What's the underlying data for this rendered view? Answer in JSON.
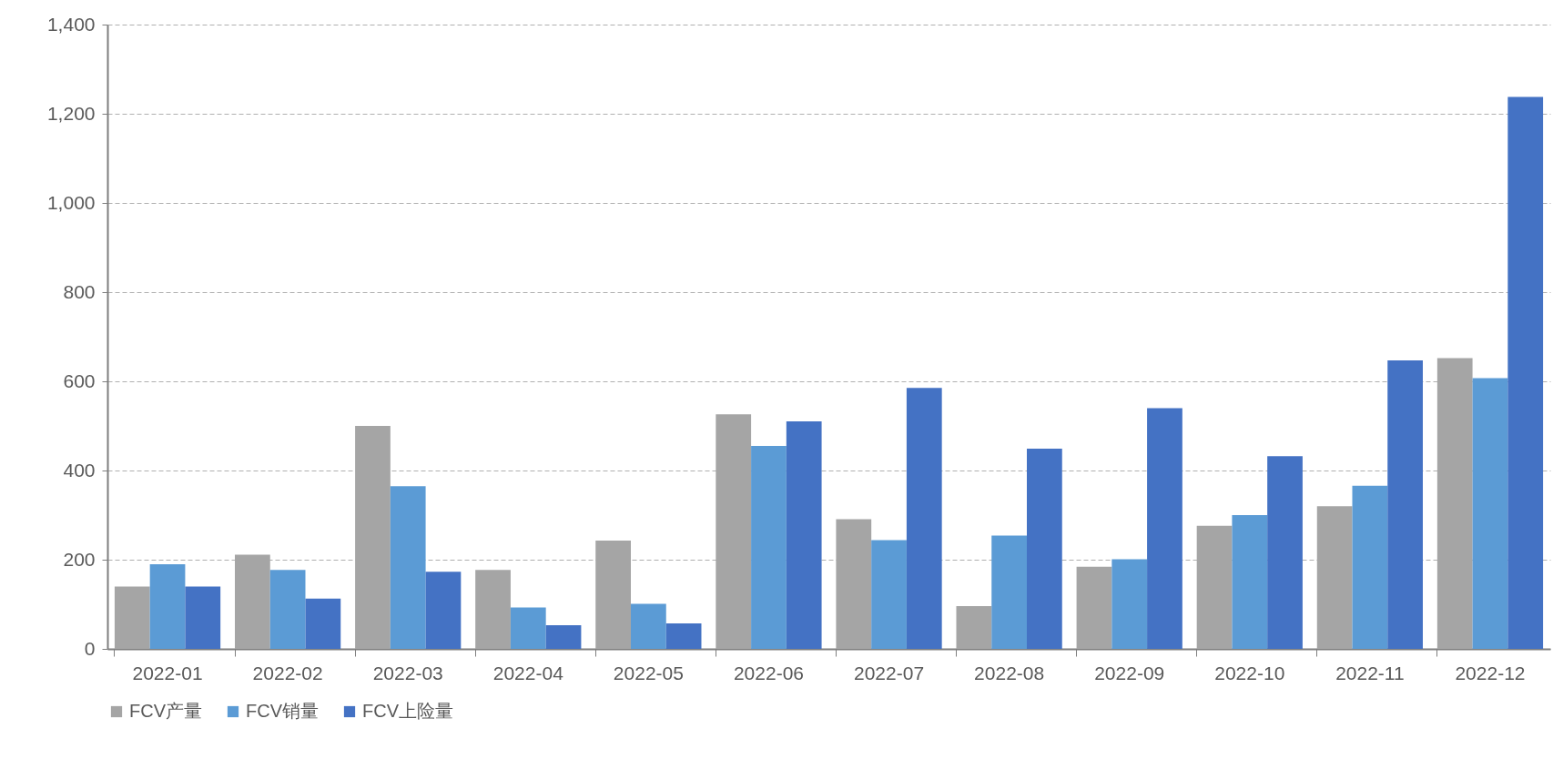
{
  "chart_data": {
    "type": "bar",
    "categories": [
      "2022-01",
      "2022-02",
      "2022-03",
      "2022-04",
      "2022-05",
      "2022-06",
      "2022-07",
      "2022-08",
      "2022-09",
      "2022-10",
      "2022-11",
      "2022-12"
    ],
    "series": [
      {
        "name": "FCV产量",
        "color": "#a5a5a5",
        "values": [
          140,
          211,
          500,
          177,
          243,
          526,
          291,
          96,
          184,
          276,
          320,
          652
        ]
      },
      {
        "name": "FCV销量",
        "color": "#5b9bd5",
        "values": [
          190,
          177,
          365,
          93,
          101,
          455,
          244,
          254,
          201,
          300,
          366,
          607
        ]
      },
      {
        "name": "FCV上险量",
        "color": "#4472c4",
        "values": [
          140,
          113,
          173,
          53,
          57,
          510,
          585,
          449,
          540,
          432,
          647,
          1238
        ]
      }
    ],
    "ylim": [
      0,
      1400
    ],
    "yticks": [
      0,
      {
        "value": 200,
        "label": "200"
      },
      {
        "value": 400,
        "label": "400"
      },
      {
        "value": 600,
        "label": "600"
      },
      {
        "value": 800,
        "label": "800"
      },
      {
        "value": 1000,
        "label": "1,000"
      },
      {
        "value": 1200,
        "label": "1,200"
      },
      {
        "value": 1400,
        "label": "1,400"
      }
    ],
    "grid": "y",
    "legend": "bottom"
  }
}
